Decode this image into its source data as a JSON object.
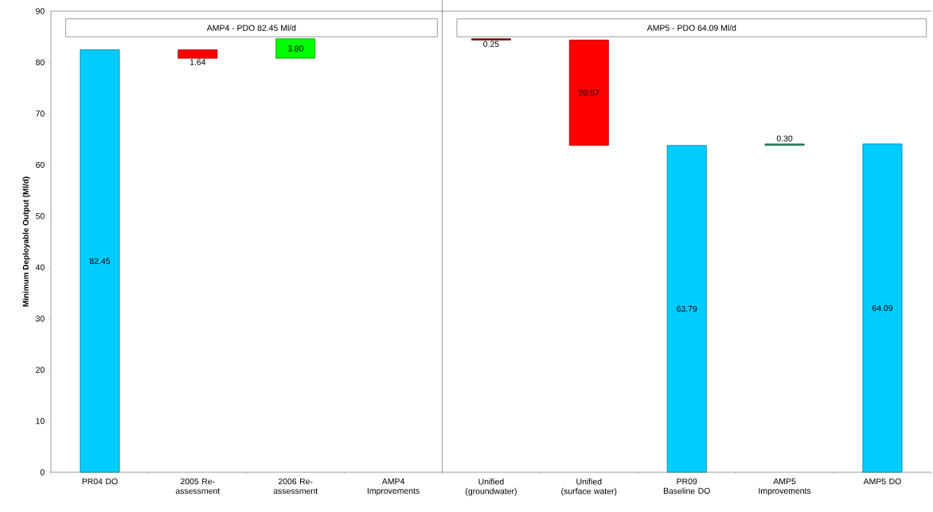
{
  "chart_data": {
    "type": "bar",
    "ylabel": "Minimum Deployable Output (Ml/d)",
    "categories": [
      "PR04 DO",
      "2005 Re-assessment",
      "2006 Re-assessment",
      "AMP4 Improvements",
      "Unified (groundwater)",
      "Unified (surface water)",
      "PR09 Baseline DO",
      "AMP5 Improvements",
      "AMP5 DO"
    ],
    "values": [
      82.45,
      -1.64,
      3.8,
      null,
      -0.25,
      -20.57,
      63.79,
      0.3,
      64.09
    ],
    "base": [
      0,
      82.45,
      80.81,
      null,
      84.61,
      84.36,
      0,
      63.79,
      0
    ],
    "colors": [
      "#00ccff",
      "#ff0000",
      "#00ff00",
      "#00ccff",
      "#990000",
      "#ff0000",
      "#00ccff",
      "#339966",
      "#00ccff"
    ],
    "value_labels": [
      "82.45",
      "1.64",
      "3.80",
      null,
      "0.25",
      "20.57",
      "63.79",
      "0.30",
      "64.09"
    ],
    "ylim": [
      0,
      90
    ],
    "yticks": [
      0,
      10,
      20,
      30,
      40,
      50,
      60,
      70,
      80,
      90
    ],
    "annotations": [
      "AMP4 - PDO 82.45 Ml/d",
      "AMP5 - PDO 64.09 Ml/d"
    ],
    "grid": false
  }
}
